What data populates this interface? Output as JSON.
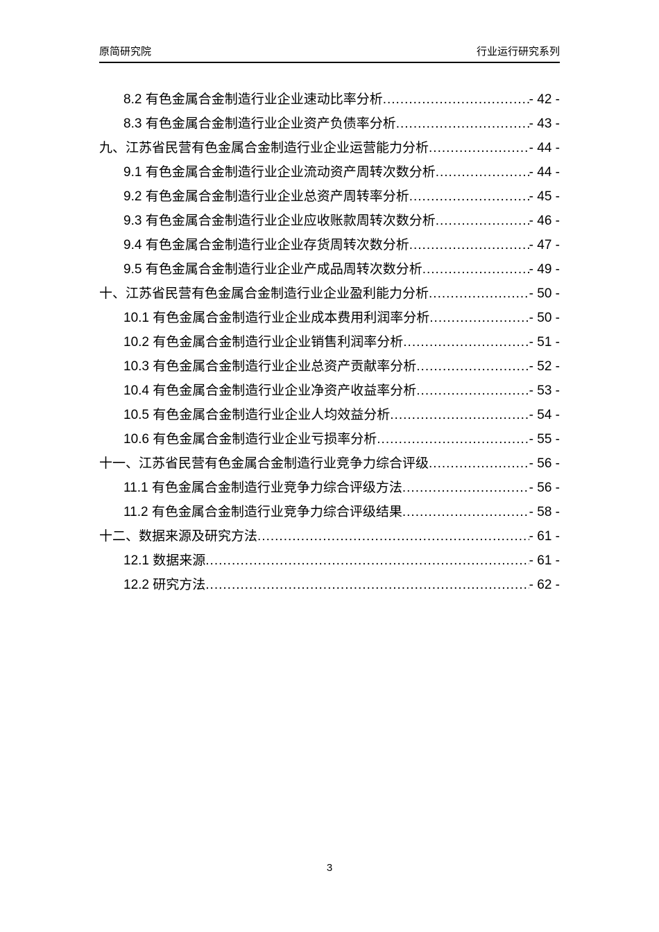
{
  "header": {
    "left": "原简研究院",
    "right": "行业运行研究系列"
  },
  "toc": {
    "entries": [
      {
        "level": 2,
        "title": "8.2 有色金属合金制造行业企业速动比率分析",
        "page": "- 42 -"
      },
      {
        "level": 2,
        "title": "8.3 有色金属合金制造行业企业资产负债率分析",
        "page": "- 43 -"
      },
      {
        "level": 1,
        "title": "九、江苏省民营有色金属合金制造行业企业运营能力分析",
        "page": "- 44 -"
      },
      {
        "level": 2,
        "title": "9.1 有色金属合金制造行业企业流动资产周转次数分析",
        "page": "- 44 -"
      },
      {
        "level": 2,
        "title": "9.2 有色金属合金制造行业企业总资产周转率分析",
        "page": "- 45 -"
      },
      {
        "level": 2,
        "title": "9.3 有色金属合金制造行业企业应收账款周转次数分析",
        "page": "- 46 -"
      },
      {
        "level": 2,
        "title": "9.4 有色金属合金制造行业企业存货周转次数分析",
        "page": "- 47 -"
      },
      {
        "level": 2,
        "title": "9.5 有色金属合金制造行业企业产成品周转次数分析",
        "page": "- 49 -"
      },
      {
        "level": 1,
        "title": "十、江苏省民营有色金属合金制造行业企业盈利能力分析",
        "page": "- 50 -"
      },
      {
        "level": 2,
        "title": "10.1 有色金属合金制造行业企业成本费用利润率分析",
        "page": "- 50 -"
      },
      {
        "level": 2,
        "title": "10.2 有色金属合金制造行业企业销售利润率分析",
        "page": "- 51 -"
      },
      {
        "level": 2,
        "title": "10.3 有色金属合金制造行业企业总资产贡献率分析",
        "page": "- 52 -"
      },
      {
        "level": 2,
        "title": "10.4 有色金属合金制造行业企业净资产收益率分析",
        "page": "- 53 -"
      },
      {
        "level": 2,
        "title": "10.5 有色金属合金制造行业企业人均效益分析",
        "page": "- 54 -"
      },
      {
        "level": 2,
        "title": "10.6 有色金属合金制造行业企业亏损率分析",
        "page": "- 55 -"
      },
      {
        "level": 1,
        "title": "十一、江苏省民营有色金属合金制造行业竞争力综合评级",
        "page": "- 56 -"
      },
      {
        "level": 2,
        "title": "11.1 有色金属合金制造行业竞争力综合评级方法",
        "page": "- 56 -"
      },
      {
        "level": 2,
        "title": "11.2 有色金属合金制造行业竞争力综合评级结果",
        "page": "- 58 -"
      },
      {
        "level": 1,
        "title": "十二、数据来源及研究方法",
        "page": "- 61 -"
      },
      {
        "level": 2,
        "title": "12.1 数据来源",
        "page": "- 61 -"
      },
      {
        "level": 2,
        "title": "12.2 研究方法",
        "page": "- 62 -"
      }
    ]
  },
  "footer": {
    "page_number": "3"
  }
}
